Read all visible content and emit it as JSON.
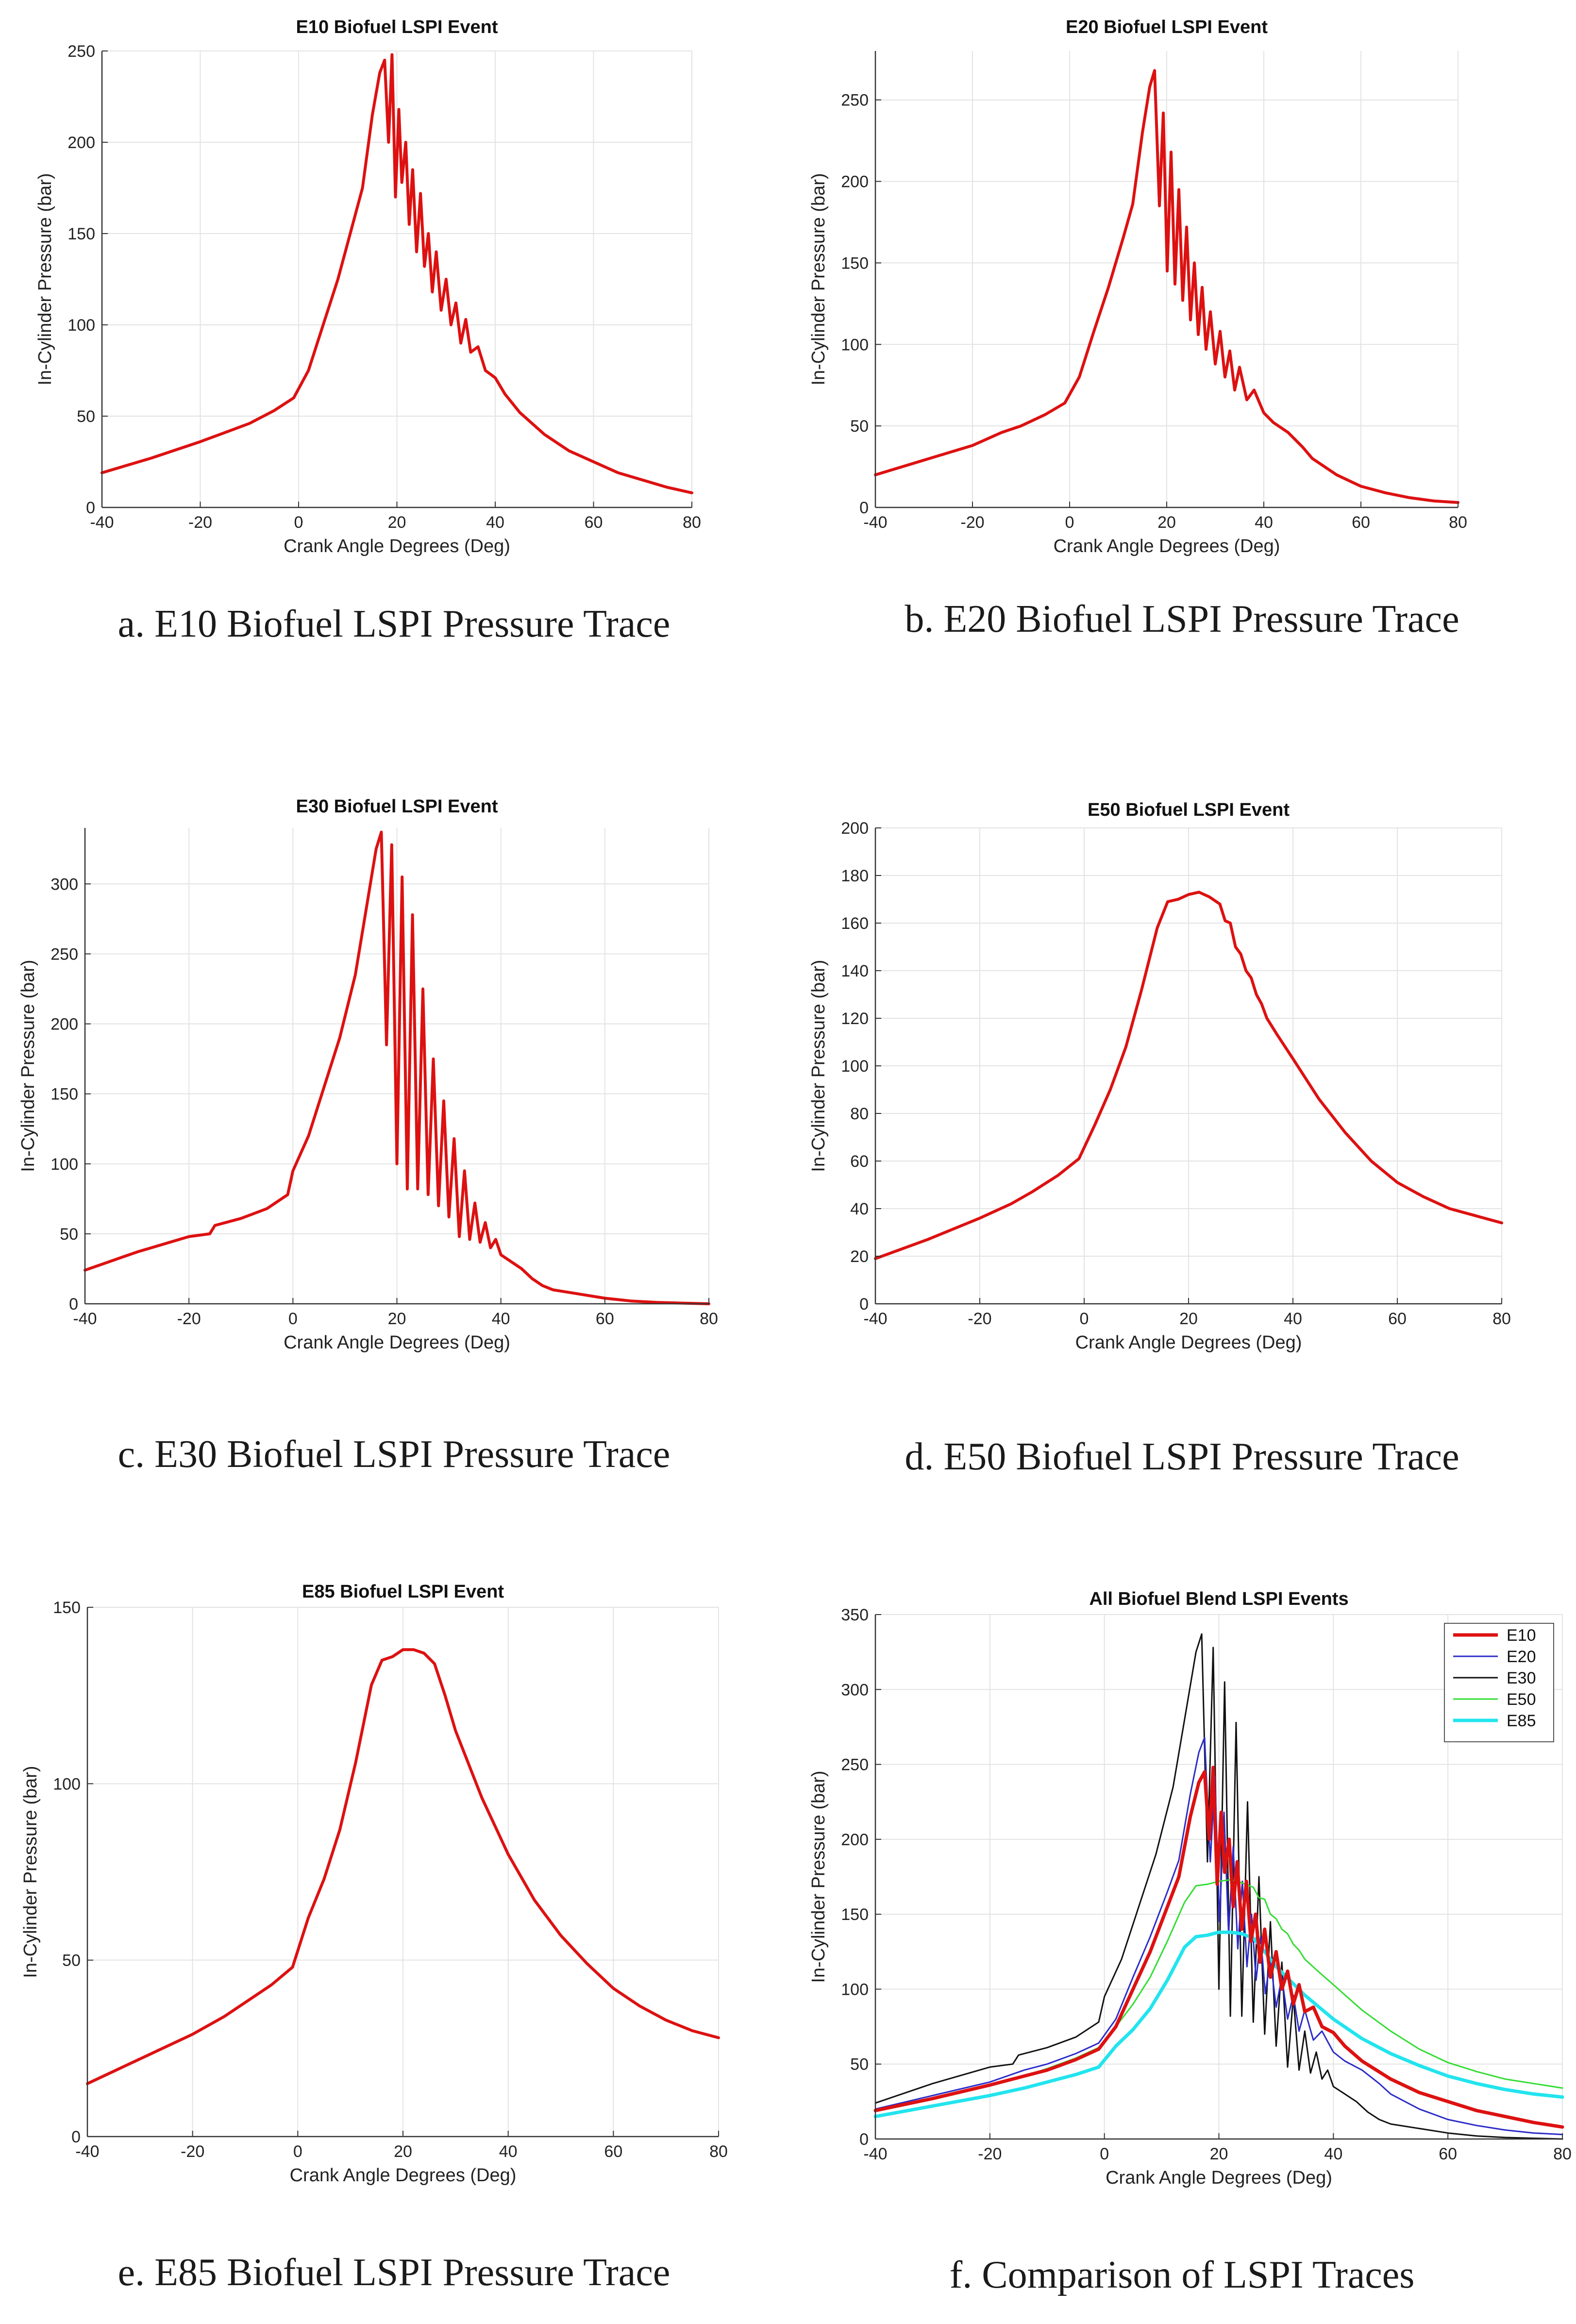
{
  "figure": {
    "captions": [
      "a. E10 Biofuel LSPI Pressure Trace",
      "b. E20 Biofuel LSPI Pressure Trace",
      "c. E30 Biofuel LSPI Pressure Trace",
      "d. E50 Biofuel LSPI Pressure Trace",
      "e. E85 Biofuel LSPI Pressure Trace",
      "f. Comparison of LSPI Traces"
    ]
  },
  "colors": {
    "E10": "#dd1111",
    "E20": "#2b2bc8",
    "E30": "#111111",
    "E50": "#33dd33",
    "E85": "#22e4ee",
    "grid": "#e3e3e3",
    "axis": "#333333"
  },
  "chart_data": [
    {
      "id": "a",
      "type": "line",
      "title": "E10 Biofuel LSPI Event",
      "xlabel": "Crank Angle Degrees (Deg)",
      "ylabel": "In-Cylinder Pressure (bar)",
      "xlim": [
        -40,
        80
      ],
      "ylim": [
        0,
        250
      ],
      "xticks": [
        -40,
        -20,
        0,
        20,
        40,
        60,
        80
      ],
      "yticks": [
        0,
        50,
        100,
        150,
        200,
        250
      ],
      "grid": true,
      "series": [
        {
          "name": "E10",
          "color": "#dd1111",
          "x": [
            -40,
            -30,
            -20,
            -14,
            -10,
            -5,
            -1,
            2,
            5,
            8,
            11,
            13,
            15,
            16.5,
            17.5,
            18.3,
            19,
            19.7,
            20.4,
            21,
            21.8,
            22.5,
            23.2,
            24,
            24.8,
            25.6,
            26.4,
            27.2,
            28,
            29,
            30,
            31,
            32,
            33,
            34,
            35,
            36.5,
            38,
            40,
            42,
            45,
            50,
            55,
            60,
            65,
            70,
            75,
            80
          ],
          "y": [
            19,
            27,
            36,
            42,
            46,
            53,
            60,
            75,
            100,
            125,
            155,
            175,
            215,
            238,
            245,
            200,
            248,
            170,
            218,
            178,
            200,
            155,
            185,
            140,
            172,
            132,
            150,
            118,
            140,
            108,
            125,
            100,
            112,
            90,
            103,
            85,
            88,
            75,
            71,
            62,
            52,
            40,
            31,
            25,
            19,
            15,
            11,
            8
          ]
        }
      ]
    },
    {
      "id": "b",
      "type": "line",
      "title": "E20 Biofuel LSPI Event",
      "xlabel": "Crank Angle Degrees (Deg)",
      "ylabel": "In-Cylinder Pressure (bar)",
      "xlim": [
        -40,
        80
      ],
      "ylim": [
        0,
        280
      ],
      "xticks": [
        -40,
        -20,
        0,
        20,
        40,
        60,
        80
      ],
      "yticks": [
        0,
        50,
        100,
        150,
        200,
        250
      ],
      "grid": true,
      "series": [
        {
          "name": "E20",
          "color": "#dd1111",
          "x": [
            -40,
            -30,
            -20,
            -14,
            -10,
            -5,
            -1,
            2,
            5,
            8,
            11,
            13,
            15,
            16.5,
            17.5,
            18.5,
            19.3,
            20.1,
            20.9,
            21.7,
            22.5,
            23.3,
            24.1,
            24.9,
            25.7,
            26.5,
            27.3,
            28.1,
            29,
            30,
            31,
            32,
            33,
            34,
            35,
            36.5,
            38,
            40,
            42,
            45,
            48,
            50,
            55,
            60,
            65,
            70,
            75,
            80
          ],
          "y": [
            20,
            29,
            38,
            46,
            50,
            57,
            64,
            80,
            108,
            135,
            165,
            186,
            230,
            258,
            268,
            185,
            242,
            145,
            218,
            137,
            195,
            127,
            172,
            115,
            150,
            106,
            135,
            97,
            120,
            88,
            108,
            80,
            96,
            72,
            86,
            66,
            72,
            58,
            52,
            46,
            37,
            30,
            20,
            13,
            9,
            6,
            4,
            3
          ]
        }
      ]
    },
    {
      "id": "c",
      "type": "line",
      "title": "E30 Biofuel LSPI Event",
      "xlabel": "Crank Angle Degrees (Deg)",
      "ylabel": "In-Cylinder Pressure (bar)",
      "xlim": [
        -40,
        80
      ],
      "ylim": [
        0,
        340
      ],
      "xticks": [
        -40,
        -20,
        0,
        20,
        40,
        60,
        80
      ],
      "yticks": [
        0,
        50,
        100,
        150,
        200,
        250,
        300
      ],
      "grid": true,
      "series": [
        {
          "name": "E30",
          "color": "#dd1111",
          "x": [
            -40,
            -30,
            -20,
            -16,
            -15,
            -10,
            -5,
            -1,
            0,
            3,
            6,
            9,
            12,
            14,
            16,
            17,
            18,
            19,
            20,
            21,
            22,
            23,
            24,
            25,
            26,
            27,
            28,
            29,
            30,
            31,
            32,
            33,
            34,
            35,
            36,
            37,
            38,
            39,
            40,
            42,
            44,
            46,
            48,
            50,
            55,
            60,
            65,
            70,
            75,
            80
          ],
          "y": [
            24,
            37,
            48,
            50,
            56,
            61,
            68,
            78,
            95,
            120,
            155,
            190,
            235,
            280,
            325,
            337,
            185,
            328,
            100,
            305,
            82,
            278,
            82,
            225,
            78,
            175,
            70,
            145,
            62,
            118,
            48,
            95,
            46,
            72,
            44,
            58,
            40,
            46,
            35,
            30,
            25,
            18,
            13,
            10,
            7,
            4,
            2,
            1,
            0.5,
            0
          ]
        }
      ]
    },
    {
      "id": "d",
      "type": "line",
      "title": "E50 Biofuel LSPI Event",
      "xlabel": "Crank Angle Degrees (Deg)",
      "ylabel": "In-Cylinder Pressure (bar)",
      "xlim": [
        -40,
        80
      ],
      "ylim": [
        0,
        200
      ],
      "xticks": [
        -40,
        -20,
        0,
        20,
        40,
        60,
        80
      ],
      "yticks": [
        0,
        20,
        40,
        60,
        80,
        100,
        120,
        140,
        160,
        180,
        200
      ],
      "grid": true,
      "series": [
        {
          "name": "E50",
          "color": "#dd1111",
          "x": [
            -40,
            -30,
            -20,
            -14,
            -10,
            -5,
            -1,
            2,
            5,
            8,
            11,
            14,
            16,
            18,
            20,
            22,
            24,
            26,
            27,
            28,
            29,
            30,
            31,
            32,
            33,
            34,
            35,
            37,
            40,
            45,
            50,
            55,
            60,
            65,
            70,
            75,
            80
          ],
          "y": [
            19,
            27,
            36,
            42,
            47,
            54,
            61,
            75,
            90,
            108,
            132,
            158,
            169,
            170,
            172,
            173,
            171,
            168,
            161,
            160,
            150,
            147,
            140,
            137,
            130,
            126,
            120,
            113,
            103,
            86,
            72,
            60,
            51,
            45,
            40,
            37,
            34
          ]
        }
      ]
    },
    {
      "id": "e",
      "type": "line",
      "title": "E85 Biofuel LSPI Event",
      "xlabel": "Crank Angle Degrees (Deg)",
      "ylabel": "In-Cylinder Pressure (bar)",
      "xlim": [
        -40,
        80
      ],
      "ylim": [
        0,
        150
      ],
      "xticks": [
        -40,
        -20,
        0,
        20,
        40,
        60,
        80
      ],
      "yticks": [
        0,
        50,
        100,
        150
      ],
      "grid": true,
      "series": [
        {
          "name": "E85",
          "color": "#dd1111",
          "x": [
            -40,
            -30,
            -20,
            -14,
            -10,
            -5,
            -1,
            2,
            5,
            8,
            11,
            14,
            16,
            18,
            20,
            22,
            24,
            26,
            28,
            30,
            35,
            40,
            45,
            50,
            55,
            60,
            65,
            70,
            75,
            80
          ],
          "y": [
            15,
            22,
            29,
            34,
            38,
            43,
            48,
            62,
            73,
            87,
            106,
            128,
            135,
            136,
            138,
            138,
            137,
            134,
            125,
            115,
            96,
            80,
            67,
            57,
            49,
            42,
            37,
            33,
            30,
            28
          ]
        }
      ]
    },
    {
      "id": "f",
      "type": "line",
      "title": "All Biofuel Blend LSPI Events",
      "xlabel": "Crank Angle Degrees (Deg)",
      "ylabel": "In-Cylinder Pressure (bar)",
      "xlim": [
        -40,
        80
      ],
      "ylim": [
        0,
        350
      ],
      "xticks": [
        -40,
        -20,
        0,
        20,
        40,
        60,
        80
      ],
      "yticks": [
        0,
        50,
        100,
        150,
        200,
        250,
        300,
        350
      ],
      "grid": true,
      "legend": "top-right",
      "series": [
        {
          "name": "E10",
          "ref": "a",
          "color": "#dd1111",
          "width": 7
        },
        {
          "name": "E20",
          "ref": "b",
          "color": "#2b2bc8",
          "width": 3
        },
        {
          "name": "E30",
          "ref": "c",
          "color": "#111111",
          "width": 3
        },
        {
          "name": "E50",
          "ref": "d",
          "color": "#33dd33",
          "width": 3
        },
        {
          "name": "E85",
          "ref": "e",
          "color": "#22e4ee",
          "width": 7
        }
      ]
    }
  ]
}
